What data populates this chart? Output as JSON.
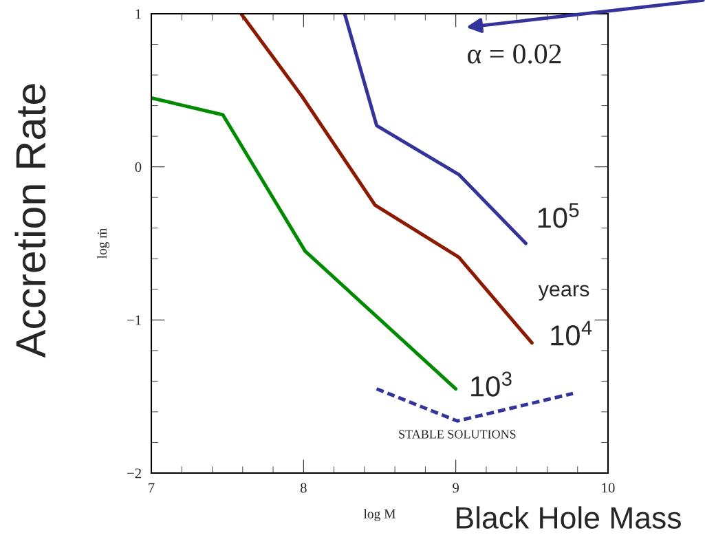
{
  "chart_data": {
    "type": "line",
    "xlabel": "log M",
    "ylabel": "log ṁ",
    "xlim": [
      7,
      10
    ],
    "ylim": [
      -2,
      1
    ],
    "xticks": [
      7,
      8,
      9,
      10
    ],
    "yticks": [
      {
        "value": -2,
        "label": "−2"
      },
      {
        "value": -1,
        "label": "−1"
      },
      0,
      1
    ],
    "series": [
      {
        "name": "10$^{5}$",
        "color": "#33339a",
        "x": [
          8.27,
          8.48,
          9.02,
          9.46
        ],
        "values": [
          1,
          0.27,
          -0.05,
          -0.5
        ]
      },
      {
        "name": "10$^{4}$",
        "color": "#8b1a00",
        "x": [
          7.59,
          7.99,
          8.47,
          9.02,
          9.5
        ],
        "values": [
          1,
          0.46,
          -0.25,
          -0.59,
          -1.15
        ]
      },
      {
        "name": "10$^{3}$",
        "color": "#008a00",
        "x": [
          7.0,
          7.47,
          8.01,
          9.0
        ],
        "values": [
          0.45,
          0.34,
          -0.55,
          -1.45
        ]
      },
      {
        "name": "STABLE SOLUTIONS",
        "color": "#33339a",
        "line_style": "dashed",
        "x": [
          8.48,
          9.01,
          9.77
        ],
        "values": [
          -1.45,
          -1.66,
          -1.48
        ]
      }
    ],
    "annotations": [
      "α = 0.02",
      "years",
      "Accretion Rate",
      "Black Hole Mass"
    ]
  }
}
